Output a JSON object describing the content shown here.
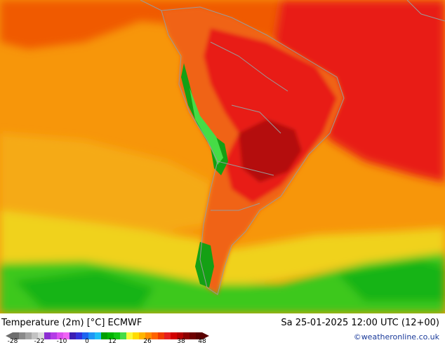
{
  "title": "Temperature (2m) [°C] ECMWF",
  "datetime": "Sa 25-01-2025 12:00 UTC (12+00)",
  "copyright": "©weatheronline.co.uk",
  "legend": {
    "ticks": [
      "-28",
      "-22",
      "-10",
      "0",
      "12",
      "26",
      "38",
      "48"
    ],
    "colors": [
      "#6e6e6e",
      "#8a8a8a",
      "#a5a5a5",
      "#c2c2c2",
      "#dcdcdc",
      "#8c2dd2",
      "#b43ce6",
      "#dc50f0",
      "#f064f5",
      "#3c1eb4",
      "#3232dc",
      "#1e64f0",
      "#1e96f5",
      "#1ebef5",
      "#00a000",
      "#00b400",
      "#14c814",
      "#46dc46",
      "#fafa3c",
      "#ffdc00",
      "#ffb400",
      "#ff8c00",
      "#ff6400",
      "#f03c00",
      "#e61e1e",
      "#d20000",
      "#b40000",
      "#8c0000",
      "#6e0000",
      "#5a0000"
    ]
  },
  "map_colors": {
    "ocean_warm": "#f7960a",
    "ocean_hot": "#f05a00",
    "land_hot": "#e81e14",
    "land_very_hot": "#c80a0a",
    "cool_south": "#f0d21e",
    "cold_south": "#3cc81e",
    "andes_cold": "#14a014",
    "coastline": "#9a9a9a"
  }
}
